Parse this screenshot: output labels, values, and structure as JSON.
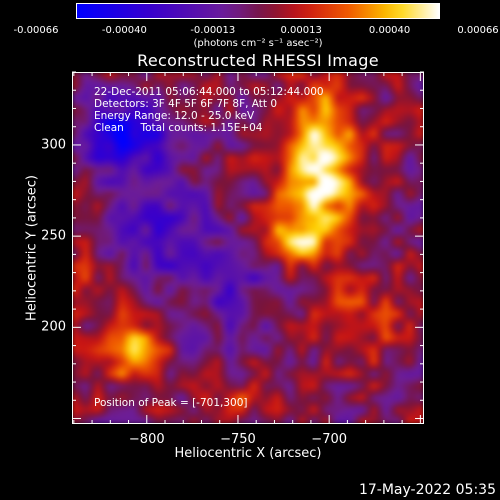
{
  "colorbar": {
    "tick_labels": [
      "-0.00066",
      "-0.00040",
      "-0.00013",
      "0.00013",
      "0.00040",
      "0.00066"
    ],
    "units": "(photons cm⁻² s⁻¹ asec⁻²)"
  },
  "plot": {
    "title": "Reconstructed RHESSI Image",
    "info_lines": [
      "22-Dec-2011 05:06:44.000 to 05:12:44.000",
      "Detectors: 3F 4F 5F 6F 7F 8F, Att 0",
      "Energy Range: 12.0 - 25.0 keV",
      "Clean     Total counts: 1.15E+04"
    ],
    "peak_label": "Position of Peak = [-701,300]"
  },
  "timestamp": "17-May-2022 05:35",
  "chart_data": {
    "type": "heatmap",
    "title": "Reconstructed RHESSI Image",
    "xlabel": "Heliocentric X (arcsec)",
    "ylabel": "Heliocentric Y (arcsec)",
    "x_ticks": [
      -800,
      -750,
      -700
    ],
    "x_tick_labels": [
      "−800",
      "−750",
      "−700"
    ],
    "y_ticks": [
      200,
      250,
      300
    ],
    "y_tick_labels": [
      "200",
      "250",
      "300"
    ],
    "xlim": [
      -841,
      -648
    ],
    "ylim": [
      147,
      340
    ],
    "zlim": [
      -0.00066,
      0.00066
    ],
    "colorbar_unit": "photons cm⁻² s⁻¹ asec⁻²",
    "peak_position": [
      -701,
      300
    ],
    "colormap": "blue-purple-red-yellow-white",
    "sources": [
      {
        "x": -703,
        "y": 290,
        "sigma_x": 14,
        "sigma_y": 30,
        "amp": 0.00064
      },
      {
        "x": -718,
        "y": 252,
        "sigma_x": 12,
        "sigma_y": 12,
        "amp": 0.00038
      },
      {
        "x": -808,
        "y": 185,
        "sigma_x": 12,
        "sigma_y": 14,
        "amp": 0.00042
      },
      {
        "x": -680,
        "y": 200,
        "sigma_x": 16,
        "sigma_y": 20,
        "amp": 0.0002
      },
      {
        "x": -745,
        "y": 160,
        "sigma_x": 14,
        "sigma_y": 10,
        "amp": 0.00018
      },
      {
        "x": -835,
        "y": 225,
        "sigma_x": 10,
        "sigma_y": 14,
        "amp": 0.00016
      },
      {
        "x": -812,
        "y": 305,
        "sigma_x": 16,
        "sigma_y": 14,
        "amp": -0.0006
      },
      {
        "x": -790,
        "y": 250,
        "sigma_x": 18,
        "sigma_y": 20,
        "amp": -0.0003
      },
      {
        "x": -750,
        "y": 220,
        "sigma_x": 16,
        "sigma_y": 20,
        "amp": -0.00022
      }
    ]
  }
}
